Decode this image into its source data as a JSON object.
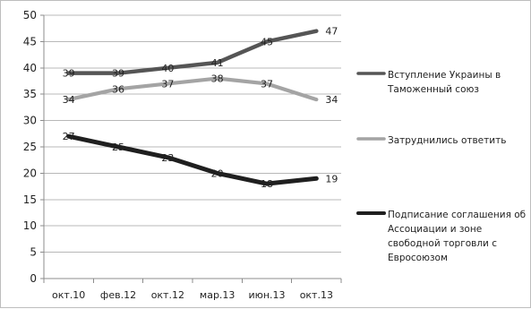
{
  "chart_data": {
    "type": "line",
    "categories": [
      "окт.10",
      "фев.12",
      "окт.12",
      "мар.13",
      "июн.13",
      "окт.13"
    ],
    "ylim": [
      0,
      50
    ],
    "y_ticks": [
      0,
      5,
      10,
      15,
      20,
      25,
      30,
      35,
      40,
      45,
      50
    ],
    "grid": true,
    "legend_position": "right",
    "series": [
      {
        "name": "Вступление Украины в Таможенный союз",
        "legend_lines": [
          "Вступление Украины в",
          "Таможенный союз"
        ],
        "values": [
          39,
          39,
          40,
          41,
          45,
          47
        ],
        "labels": [
          "39",
          "39",
          "40",
          "41",
          "45",
          "47"
        ],
        "color": "#555555"
      },
      {
        "name": "Затруднились ответить",
        "legend_lines": [
          "Затруднились ответить"
        ],
        "values": [
          34,
          36,
          37,
          38,
          37,
          34
        ],
        "labels": [
          "34",
          "36",
          "37",
          "38",
          "37",
          "34"
        ],
        "color": "#a4a4a4"
      },
      {
        "name": "Подписание соглашения об Ассоциации и зоне свободной торговли с Евросоюзом",
        "legend_lines": [
          "Подписание соглашения об",
          "Ассоциации и зоне",
          "свободной торговли с",
          "Евросоюзом"
        ],
        "values": [
          27,
          25,
          23,
          20,
          18,
          19
        ],
        "labels": [
          "27",
          "25",
          "23",
          "20",
          "18",
          "19"
        ],
        "color": "#1f1f1f"
      }
    ]
  }
}
